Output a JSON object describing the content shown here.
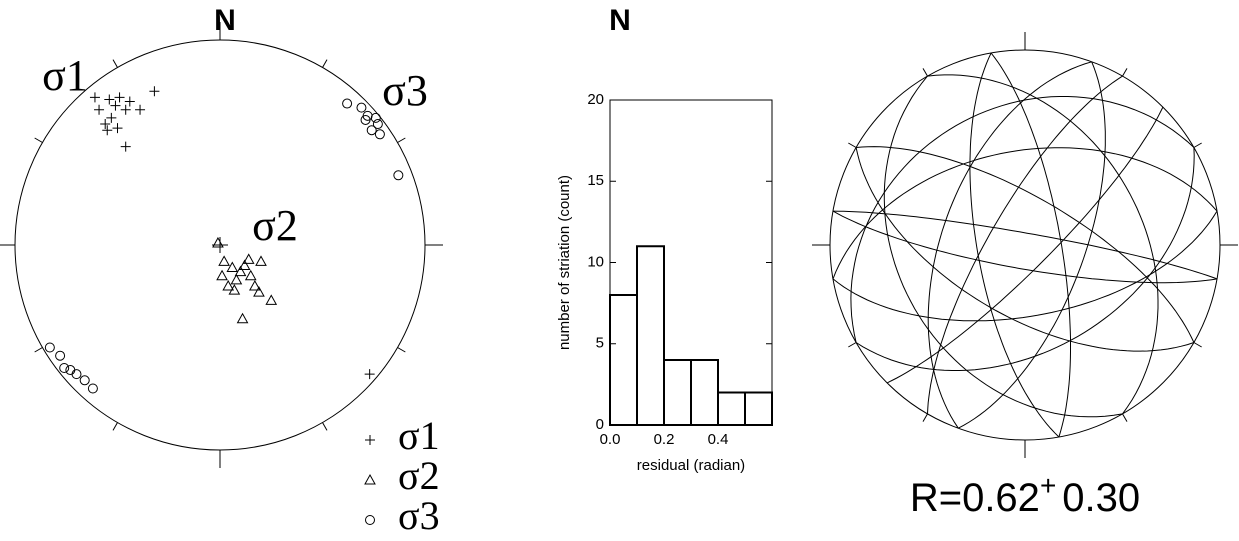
{
  "chart_data": [
    {
      "type": "stereonet-points",
      "title": "N",
      "xlim": [
        -1,
        1
      ],
      "ylim": [
        -1,
        1
      ],
      "series": [
        {
          "name": "σ1",
          "marker": "plus",
          "color": "#000000",
          "x": [
            -0.54,
            -0.51,
            -0.49,
            -0.46,
            -0.53,
            -0.56,
            -0.5,
            -0.44,
            -0.61,
            -0.59,
            -0.39,
            -0.32,
            -0.46,
            -0.55,
            0.73
          ],
          "y": [
            0.71,
            0.68,
            0.72,
            0.66,
            0.62,
            0.59,
            0.57,
            0.7,
            0.72,
            0.66,
            0.66,
            0.75,
            0.48,
            0.56,
            -0.63
          ]
        },
        {
          "name": "σ2",
          "marker": "triangle",
          "color": "#000000",
          "x": [
            -0.01,
            0.02,
            0.06,
            0.1,
            0.12,
            0.15,
            0.08,
            0.04,
            0.17,
            0.2,
            0.25,
            0.11,
            0.07,
            0.14,
            0.01,
            0.19
          ],
          "y": [
            0.01,
            -0.08,
            -0.11,
            -0.13,
            -0.1,
            -0.15,
            -0.17,
            -0.2,
            -0.2,
            -0.08,
            -0.27,
            -0.36,
            -0.22,
            -0.07,
            -0.15,
            -0.23
          ]
        },
        {
          "name": "σ3",
          "marker": "circle",
          "color": "#000000",
          "x": [
            0.62,
            0.69,
            0.72,
            0.76,
            0.77,
            0.78,
            0.74,
            0.71,
            0.87,
            -0.83,
            -0.78,
            -0.76,
            -0.73,
            -0.7,
            -0.66,
            -0.62
          ],
          "y": [
            0.69,
            0.67,
            0.63,
            0.62,
            0.59,
            0.54,
            0.56,
            0.61,
            0.34,
            -0.5,
            -0.54,
            -0.6,
            -0.61,
            -0.63,
            -0.66,
            -0.7
          ]
        }
      ]
    },
    {
      "type": "histogram",
      "title": "N",
      "xlabel": "residual (radian)",
      "ylabel": "number of striation (count)",
      "bins": [
        0,
        0.1,
        0.2,
        0.3,
        0.4,
        0.5,
        0.6
      ],
      "values": [
        8,
        11,
        4,
        4,
        2,
        2
      ],
      "color": "#ffffff",
      "xlim": [
        0,
        0.6
      ],
      "ylim": [
        0,
        20
      ],
      "xticks": [
        {
          "value": 0,
          "label": "0.0"
        },
        {
          "value": 0.2,
          "label": "0.2"
        },
        {
          "value": 0.4,
          "label": "0.4"
        }
      ],
      "yticks": [
        0,
        5,
        10,
        15,
        20
      ]
    },
    {
      "type": "stereonet-planes",
      "color": "#000000",
      "planes": [
        [
          300,
          70
        ],
        [
          120,
          60
        ],
        [
          45,
          80
        ],
        [
          210,
          75
        ],
        [
          330,
          40
        ],
        [
          150,
          35
        ],
        [
          20,
          65
        ],
        [
          200,
          55
        ],
        [
          280,
          85
        ],
        [
          100,
          80
        ],
        [
          60,
          45
        ],
        [
          240,
          30
        ],
        [
          170,
          70
        ],
        [
          350,
          75
        ],
        [
          80,
          60
        ],
        [
          260,
          50
        ]
      ],
      "annotation": {
        "text": "R=0.62",
        "sup": "+",
        "error": "0.30"
      }
    }
  ]
}
